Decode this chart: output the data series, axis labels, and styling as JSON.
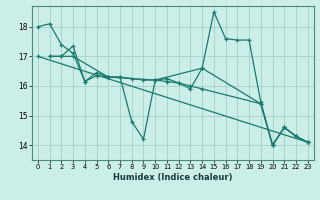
{
  "xlabel": "Humidex (Indice chaleur)",
  "xlim": [
    -0.5,
    23.5
  ],
  "ylim": [
    13.5,
    18.7
  ],
  "yticks": [
    14,
    15,
    16,
    17,
    18
  ],
  "xticks": [
    0,
    1,
    2,
    3,
    4,
    5,
    6,
    7,
    8,
    9,
    10,
    11,
    12,
    13,
    14,
    15,
    16,
    17,
    18,
    19,
    20,
    21,
    22,
    23
  ],
  "bg_color": "#cceee8",
  "grid_color": "#aad4cc",
  "line_color": "#1a7a6e",
  "lines": [
    {
      "x": [
        0,
        1,
        2,
        3,
        4,
        5,
        6,
        7,
        8,
        9,
        10,
        11,
        12,
        13,
        14,
        15,
        16,
        17,
        18,
        19,
        20,
        21,
        22,
        23
      ],
      "y": [
        18.0,
        18.1,
        17.4,
        17.1,
        16.15,
        16.45,
        16.3,
        16.3,
        14.8,
        14.2,
        16.2,
        16.25,
        16.1,
        15.9,
        16.6,
        18.5,
        17.6,
        17.55,
        17.55,
        15.45,
        14.0,
        14.6,
        14.3,
        14.1
      ]
    },
    {
      "x": [
        1,
        2,
        3,
        4,
        5,
        6,
        7,
        8,
        9,
        10,
        11,
        12,
        13,
        14,
        19,
        20,
        21,
        22,
        23
      ],
      "y": [
        17.0,
        17.0,
        17.35,
        16.15,
        16.35,
        16.3,
        16.3,
        16.25,
        16.2,
        16.2,
        16.15,
        16.1,
        16.0,
        15.9,
        15.4,
        14.0,
        14.6,
        14.3,
        14.1
      ]
    },
    {
      "x": [
        1,
        2,
        3,
        6,
        10,
        14,
        19,
        20,
        21,
        22,
        23
      ],
      "y": [
        17.0,
        17.0,
        17.0,
        16.3,
        16.2,
        16.6,
        15.4,
        14.0,
        14.6,
        14.3,
        14.1
      ]
    },
    {
      "x": [
        0,
        23
      ],
      "y": [
        17.0,
        14.1
      ]
    }
  ]
}
